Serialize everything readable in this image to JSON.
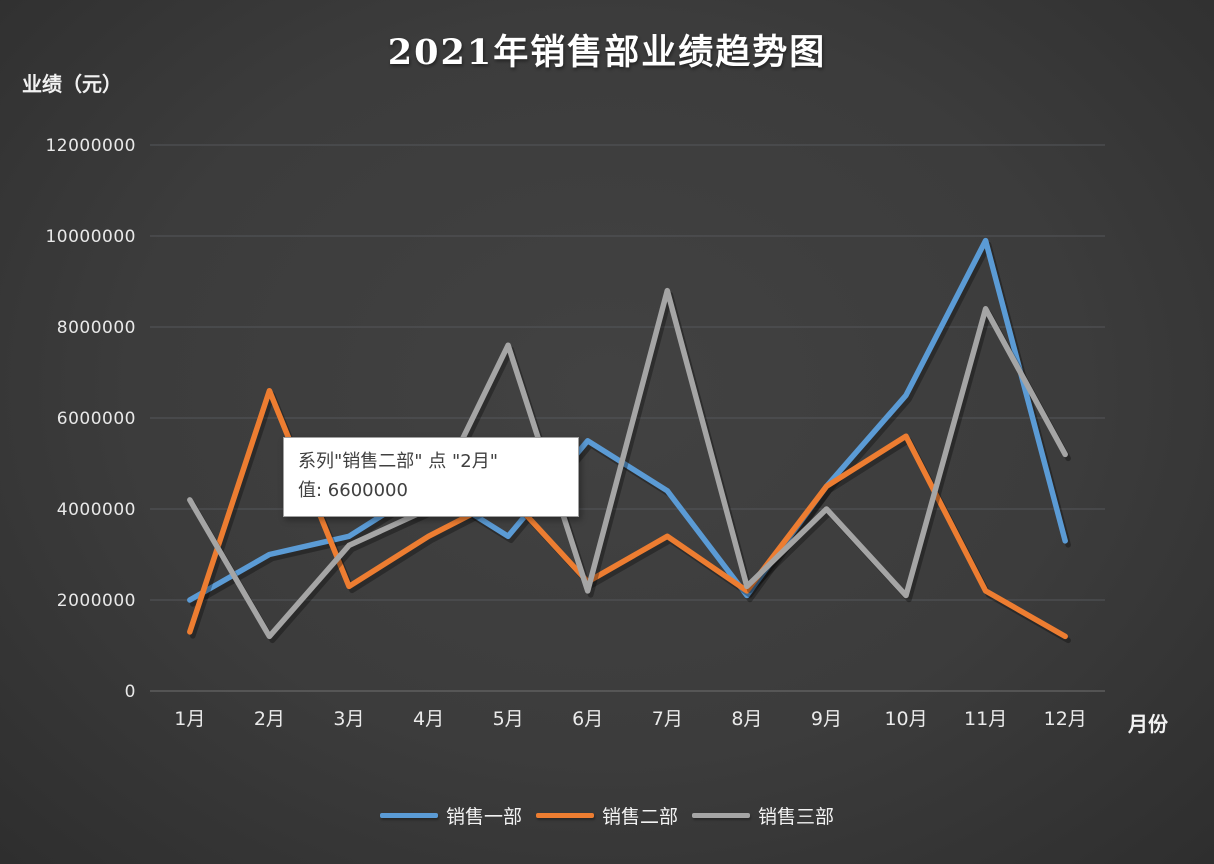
{
  "page": {
    "background": "#3c3c3c"
  },
  "chart_data": {
    "type": "line",
    "title": "2021年销售部业绩趋势图",
    "ylabel": "业绩（元）",
    "xlabel": "月份",
    "categories": [
      "1月",
      "2月",
      "3月",
      "4月",
      "5月",
      "6月",
      "7月",
      "8月",
      "9月",
      "10月",
      "11月",
      "12月"
    ],
    "y_ticks": [
      0,
      2000000,
      4000000,
      6000000,
      8000000,
      10000000,
      12000000
    ],
    "y_tick_labels": [
      "0",
      "2000000",
      "4000000",
      "6000000",
      "8000000",
      "10000000",
      "12000000"
    ],
    "ylim": [
      0,
      12000000
    ],
    "grid": true,
    "legend_position": "bottom",
    "series": [
      {
        "name": "销售一部",
        "color": "#5B9BD5",
        "values": [
          2000000,
          3000000,
          3400000,
          4500000,
          3400000,
          5500000,
          4400000,
          2100000,
          4500000,
          6500000,
          9900000,
          3300000
        ]
      },
      {
        "name": "销售二部",
        "color": "#ED7D31",
        "values": [
          1300000,
          6600000,
          2300000,
          3400000,
          4300000,
          2400000,
          3400000,
          2200000,
          4500000,
          5600000,
          2200000,
          1200000
        ]
      },
      {
        "name": "销售三部",
        "color": "#A5A5A5",
        "values": [
          4200000,
          1200000,
          3200000,
          4000000,
          7600000,
          2200000,
          8800000,
          2300000,
          4000000,
          2100000,
          8400000,
          5200000
        ]
      }
    ]
  },
  "tooltip": {
    "line1": "系列\"销售二部\" 点 \"2月\"",
    "line2": "值: 6600000"
  }
}
